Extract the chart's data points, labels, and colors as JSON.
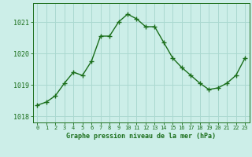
{
  "x": [
    0,
    1,
    2,
    3,
    4,
    5,
    6,
    7,
    8,
    9,
    10,
    11,
    12,
    13,
    14,
    15,
    16,
    17,
    18,
    19,
    20,
    21,
    22,
    23
  ],
  "y": [
    1018.35,
    1018.45,
    1018.65,
    1019.05,
    1019.4,
    1019.3,
    1019.75,
    1020.55,
    1020.55,
    1021.0,
    1021.25,
    1021.1,
    1020.85,
    1020.85,
    1020.35,
    1019.85,
    1019.55,
    1019.3,
    1019.05,
    1018.85,
    1018.9,
    1019.05,
    1019.3,
    1019.85
  ],
  "line_color": "#1a6e1a",
  "marker_color": "#1a6e1a",
  "bg_color": "#cceee8",
  "grid_color": "#aad8d0",
  "xlabel": "Graphe pression niveau de la mer (hPa)",
  "xlabel_color": "#1a6e1a",
  "tick_color": "#1a6e1a",
  "ylim": [
    1017.8,
    1021.6
  ],
  "yticks": [
    1018,
    1019,
    1020,
    1021
  ],
  "xlim": [
    -0.5,
    23.5
  ],
  "xticks": [
    0,
    1,
    2,
    3,
    4,
    5,
    6,
    7,
    8,
    9,
    10,
    11,
    12,
    13,
    14,
    15,
    16,
    17,
    18,
    19,
    20,
    21,
    22,
    23
  ],
  "marker_size": 4,
  "line_width": 1.0
}
